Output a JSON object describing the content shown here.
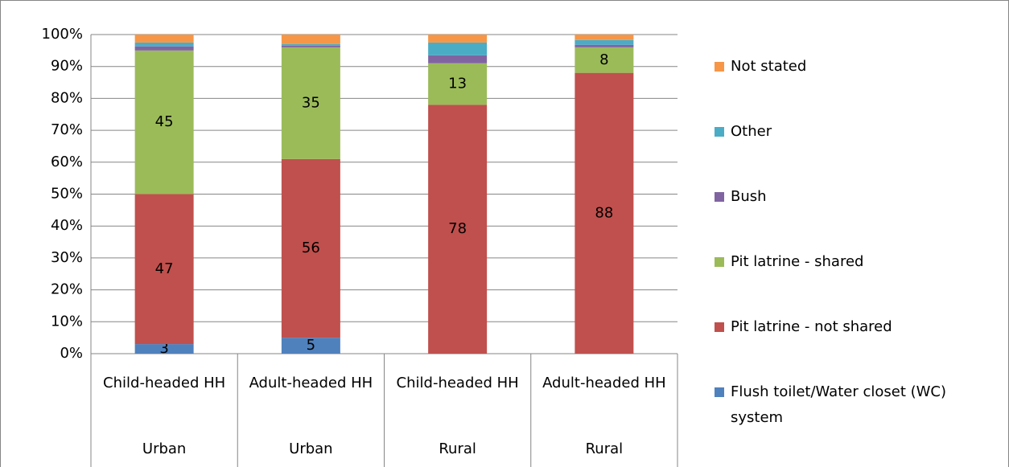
{
  "chart_data": {
    "type": "stacked_bar",
    "categories": [
      "Child-headed HH",
      "Adult-headed HH",
      "Child-headed HH",
      "Adult-headed HH"
    ],
    "groups": [
      "Urban",
      "Urban",
      "Rural",
      "Rural"
    ],
    "series": [
      {
        "name": "Flush toilet/Water closet (WC) system",
        "color": "#4f81bd",
        "values": [
          3,
          5,
          0,
          0
        ],
        "data_labels": true
      },
      {
        "name": "Pit latrine - not shared",
        "color": "#c0504d",
        "values": [
          47,
          56,
          78,
          88
        ],
        "data_labels": true
      },
      {
        "name": "Pit latrine - shared",
        "color": "#9bbb59",
        "values": [
          45,
          35,
          13,
          8
        ],
        "data_labels": true
      },
      {
        "name": "Bush",
        "color": "#8064a2",
        "values": [
          1.3,
          0.5,
          2.5,
          0.8
        ],
        "data_labels": false
      },
      {
        "name": "Other",
        "color": "#4bacc6",
        "values": [
          1.2,
          0.5,
          4,
          1.5
        ],
        "data_labels": false
      },
      {
        "name": "Not stated",
        "color": "#f79646",
        "values": [
          2.5,
          3,
          2.5,
          1.7
        ],
        "data_labels": false
      }
    ],
    "ylim": [
      0,
      100
    ],
    "yticks": [
      {
        "value": 0,
        "label": "0%"
      },
      {
        "value": 10,
        "label": "10%"
      },
      {
        "value": 20,
        "label": "20%"
      },
      {
        "value": 30,
        "label": "30%"
      },
      {
        "value": 40,
        "label": "40%"
      },
      {
        "value": 50,
        "label": "50%"
      },
      {
        "value": 60,
        "label": "60%"
      },
      {
        "value": 70,
        "label": "70%"
      },
      {
        "value": 80,
        "label": "80%"
      },
      {
        "value": 90,
        "label": "90%"
      },
      {
        "value": 100,
        "label": "100%"
      }
    ],
    "grid": true,
    "legend": "right"
  }
}
